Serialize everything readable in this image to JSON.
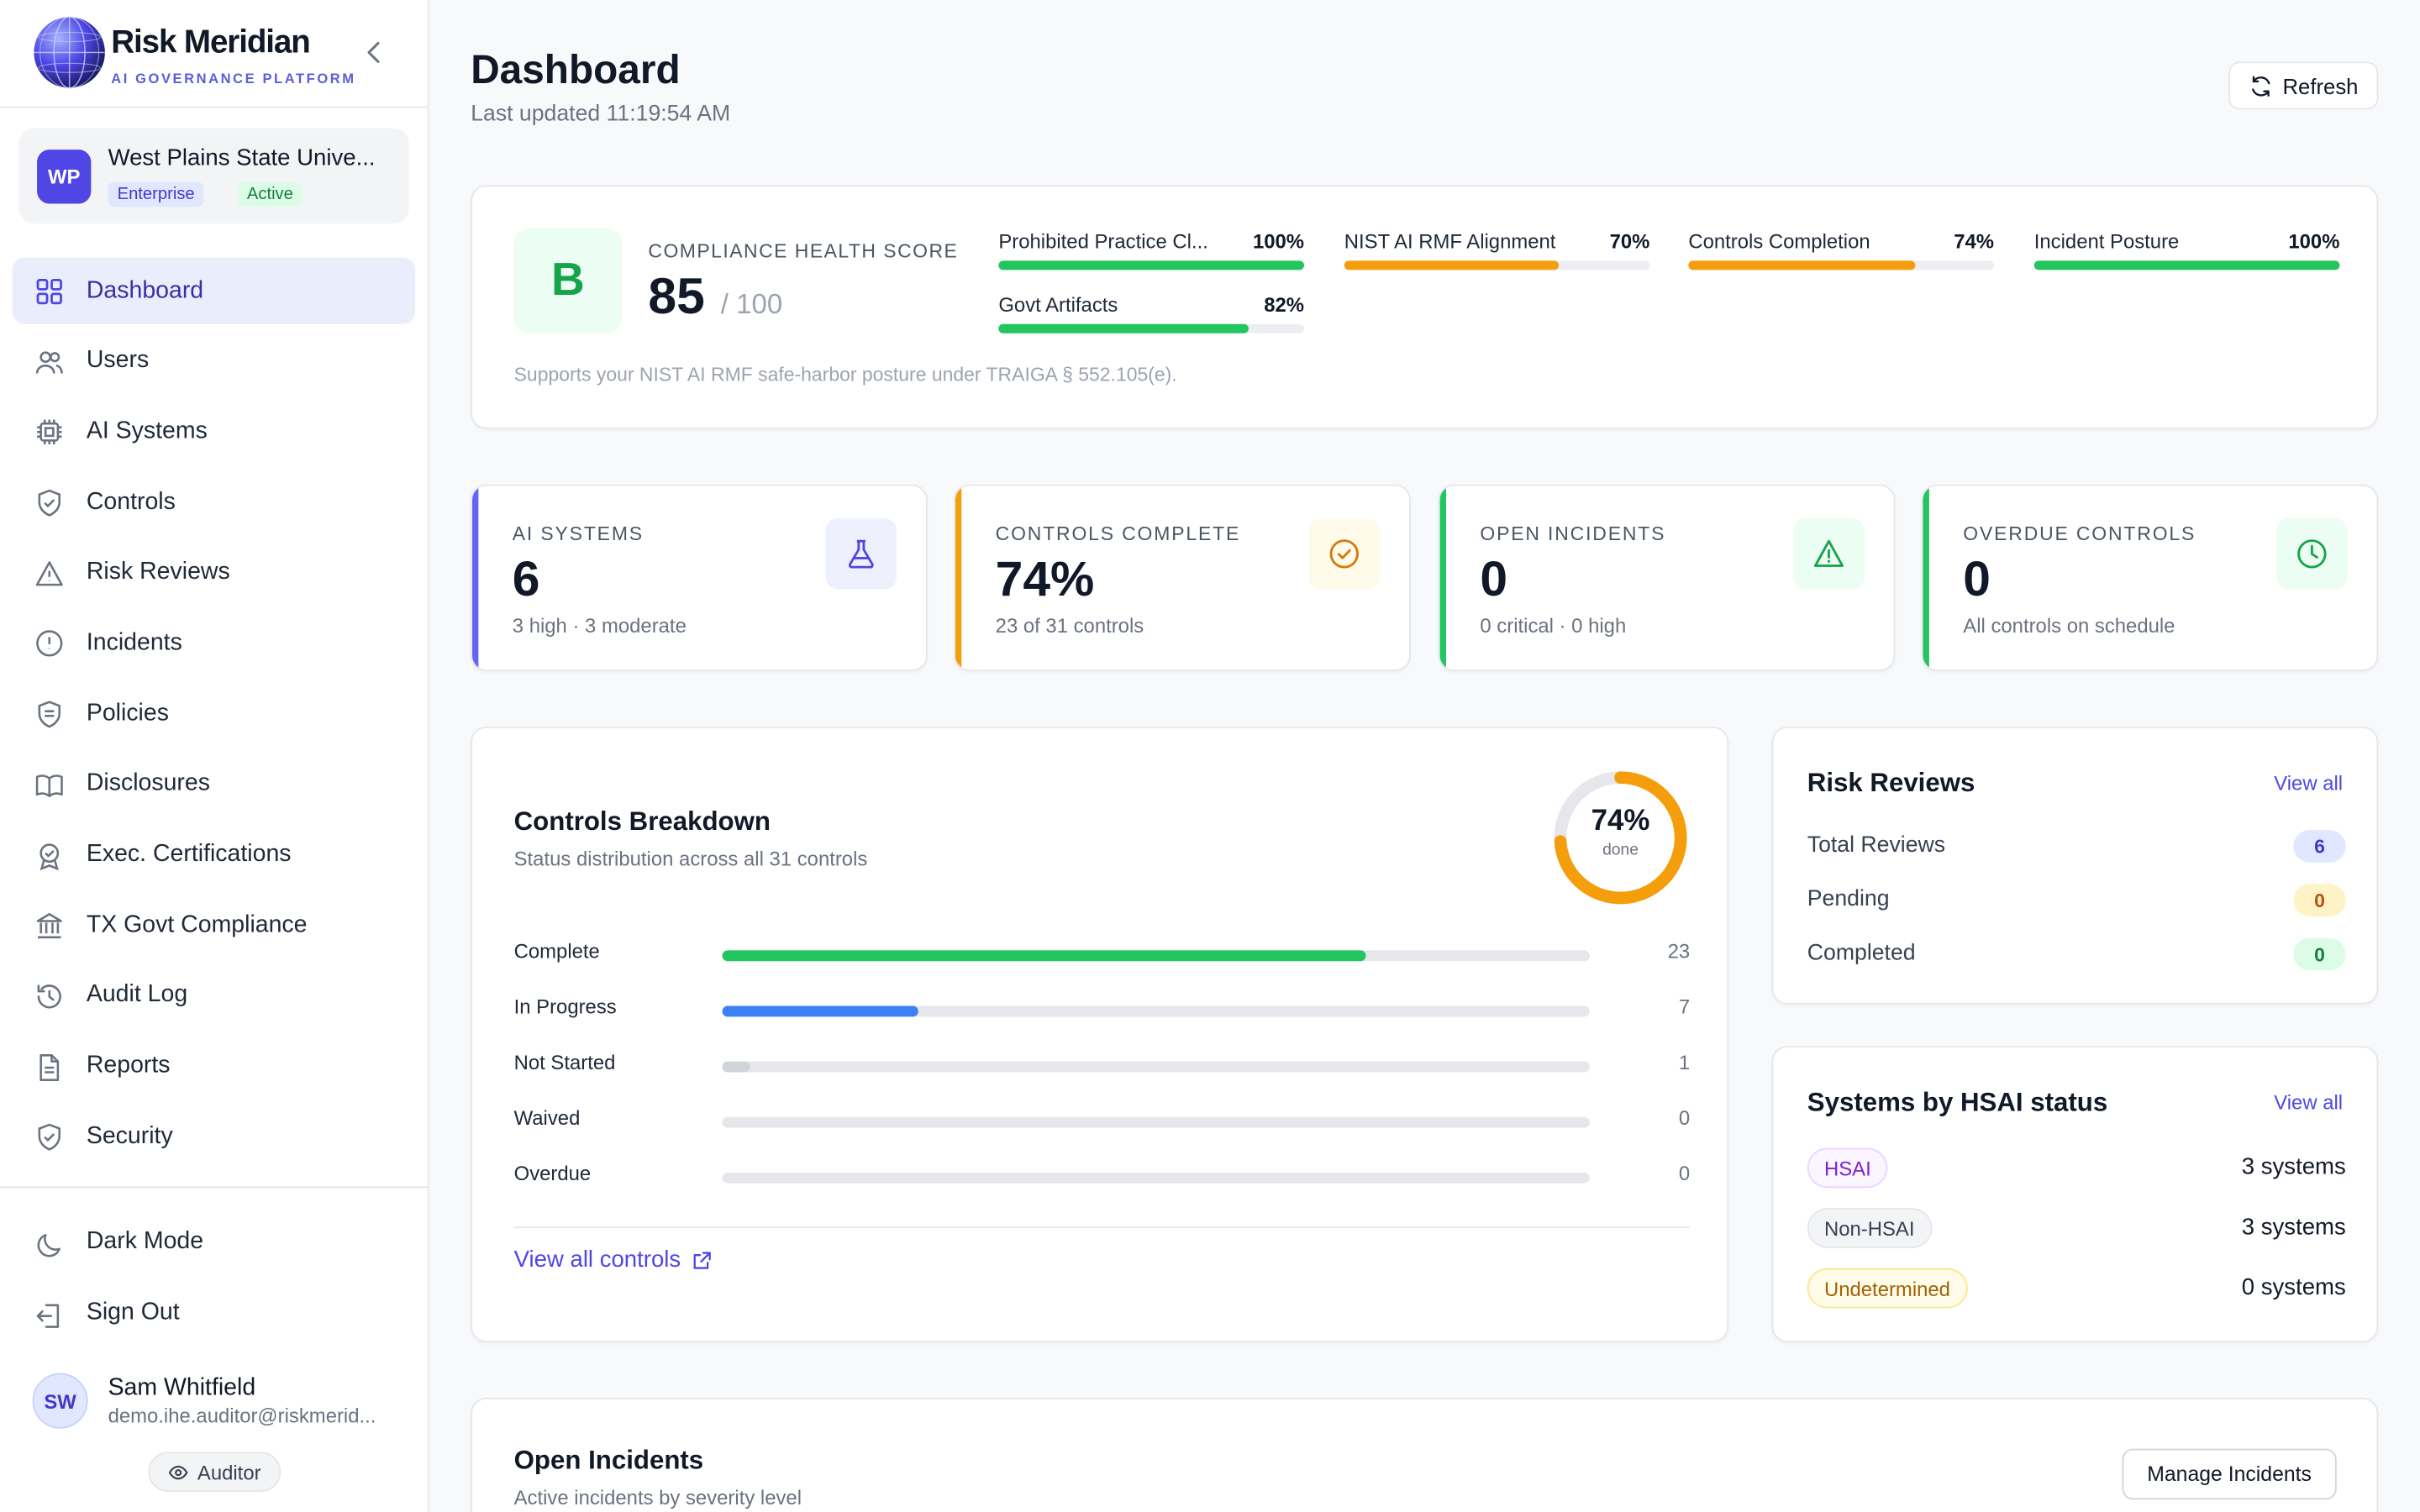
{
  "brand": {
    "name": "Risk Meridian",
    "tagline": "AI GOVERNANCE PLATFORM"
  },
  "org": {
    "initials": "WP",
    "name": "West Plains State Unive...",
    "tier": "Enterprise",
    "status": "Active"
  },
  "nav": {
    "items": [
      {
        "label": "Dashboard",
        "icon": "grid-icon",
        "active": true
      },
      {
        "label": "Users",
        "icon": "users-icon"
      },
      {
        "label": "AI Systems",
        "icon": "cpu-icon"
      },
      {
        "label": "Controls",
        "icon": "shield-check-icon"
      },
      {
        "label": "Risk Reviews",
        "icon": "warning-triangle-icon"
      },
      {
        "label": "Incidents",
        "icon": "alert-circle-icon"
      },
      {
        "label": "Policies",
        "icon": "shield-lines-icon"
      },
      {
        "label": "Disclosures",
        "icon": "book-open-icon"
      },
      {
        "label": "Exec. Certifications",
        "icon": "award-icon"
      },
      {
        "label": "TX Govt Compliance",
        "icon": "landmark-icon"
      },
      {
        "label": "Audit Log",
        "icon": "history-icon"
      },
      {
        "label": "Reports",
        "icon": "file-text-icon"
      },
      {
        "label": "Security",
        "icon": "shield-icon"
      }
    ],
    "dark_mode": "Dark Mode",
    "sign_out": "Sign Out"
  },
  "user": {
    "initials": "SW",
    "name": "Sam Whitfield",
    "email": "demo.ihe.auditor@riskmerid...",
    "role": "Auditor"
  },
  "header": {
    "title": "Dashboard",
    "last_updated": "Last updated 11:19:54 AM",
    "refresh": "Refresh"
  },
  "health": {
    "grade": "B",
    "label": "COMPLIANCE HEALTH SCORE",
    "score": "85",
    "max": "/ 100",
    "note": "Supports your NIST AI RMF safe-harbor posture under TRAIGA § 552.105(e).",
    "metrics": [
      {
        "label": "Prohibited Practice Cl...",
        "pct": "100%",
        "value": 100,
        "color": "#22c55e"
      },
      {
        "label": "NIST AI RMF Alignment",
        "pct": "70%",
        "value": 70,
        "color": "#f59e0b"
      },
      {
        "label": "Controls Completion",
        "pct": "74%",
        "value": 74,
        "color": "#f59e0b"
      },
      {
        "label": "Incident Posture",
        "pct": "100%",
        "value": 100,
        "color": "#22c55e"
      },
      {
        "label": "Govt Artifacts",
        "pct": "82%",
        "value": 82,
        "color": "#22c55e"
      }
    ]
  },
  "stats": [
    {
      "label": "AI SYSTEMS",
      "value": "6",
      "sub": "3 high · 3 moderate",
      "accent": "#6366f1",
      "icon": "flask-icon",
      "icon_bg": "#eef0fe",
      "icon_color": "#4f46e5"
    },
    {
      "label": "CONTROLS COMPLETE",
      "value": "74%",
      "sub": "23 of 31 controls",
      "accent": "#f59e0b",
      "icon": "check-circle-icon",
      "icon_bg": "#fffbeb",
      "icon_color": "#d97706"
    },
    {
      "label": "OPEN INCIDENTS",
      "value": "0",
      "sub": "0 critical · 0 high",
      "accent": "#22c55e",
      "icon": "warning-triangle-icon",
      "icon_bg": "#ecfdf3",
      "icon_color": "#16a34a"
    },
    {
      "label": "OVERDUE CONTROLS",
      "value": "0",
      "sub": "All controls on schedule",
      "accent": "#22c55e",
      "icon": "clock-icon",
      "icon_bg": "#ecfdf3",
      "icon_color": "#16a34a"
    }
  ],
  "breakdown": {
    "title": "Controls Breakdown",
    "subtitle": "Status distribution across all 31 controls",
    "donut_pct": "74%",
    "donut_value": 74,
    "donut_label": "done",
    "rows": [
      {
        "label": "Complete",
        "count": "23",
        "value": 23,
        "color": "#22c55e"
      },
      {
        "label": "In Progress",
        "count": "7",
        "value": 7,
        "color": "#3b82f6"
      },
      {
        "label": "Not Started",
        "count": "1",
        "value": 1,
        "color": "#d1d5db"
      },
      {
        "label": "Waived",
        "count": "0",
        "value": 0,
        "color": "#d1d5db"
      },
      {
        "label": "Overdue",
        "count": "0",
        "value": 0,
        "color": "#d1d5db"
      }
    ],
    "total": 31,
    "view_all": "View all controls"
  },
  "risk_reviews": {
    "title": "Risk Reviews",
    "view_all": "View all",
    "rows": [
      {
        "label": "Total Reviews",
        "count": "6",
        "bg": "#e0e7ff",
        "fg": "#4338ca"
      },
      {
        "label": "Pending",
        "count": "0",
        "bg": "#fef3c7",
        "fg": "#b45309"
      },
      {
        "label": "Completed",
        "count": "0",
        "bg": "#dcfce7",
        "fg": "#15803d"
      }
    ]
  },
  "hsai": {
    "title": "Systems by HSAI status",
    "view_all": "View all",
    "rows": [
      {
        "label": "HSAI",
        "count": "3 systems",
        "bg": "#faf5ff",
        "fg": "#7e22ce",
        "border": "#e9d5ff"
      },
      {
        "label": "Non-HSAI",
        "count": "3 systems",
        "bg": "#f3f4f6",
        "fg": "#374151",
        "border": "#e5e7eb"
      },
      {
        "label": "Undetermined",
        "count": "0 systems",
        "bg": "#fefce8",
        "fg": "#a16207",
        "border": "#fde68a"
      }
    ]
  },
  "incidents": {
    "title": "Open Incidents",
    "subtitle": "Active incidents by severity level",
    "manage": "Manage Incidents"
  }
}
